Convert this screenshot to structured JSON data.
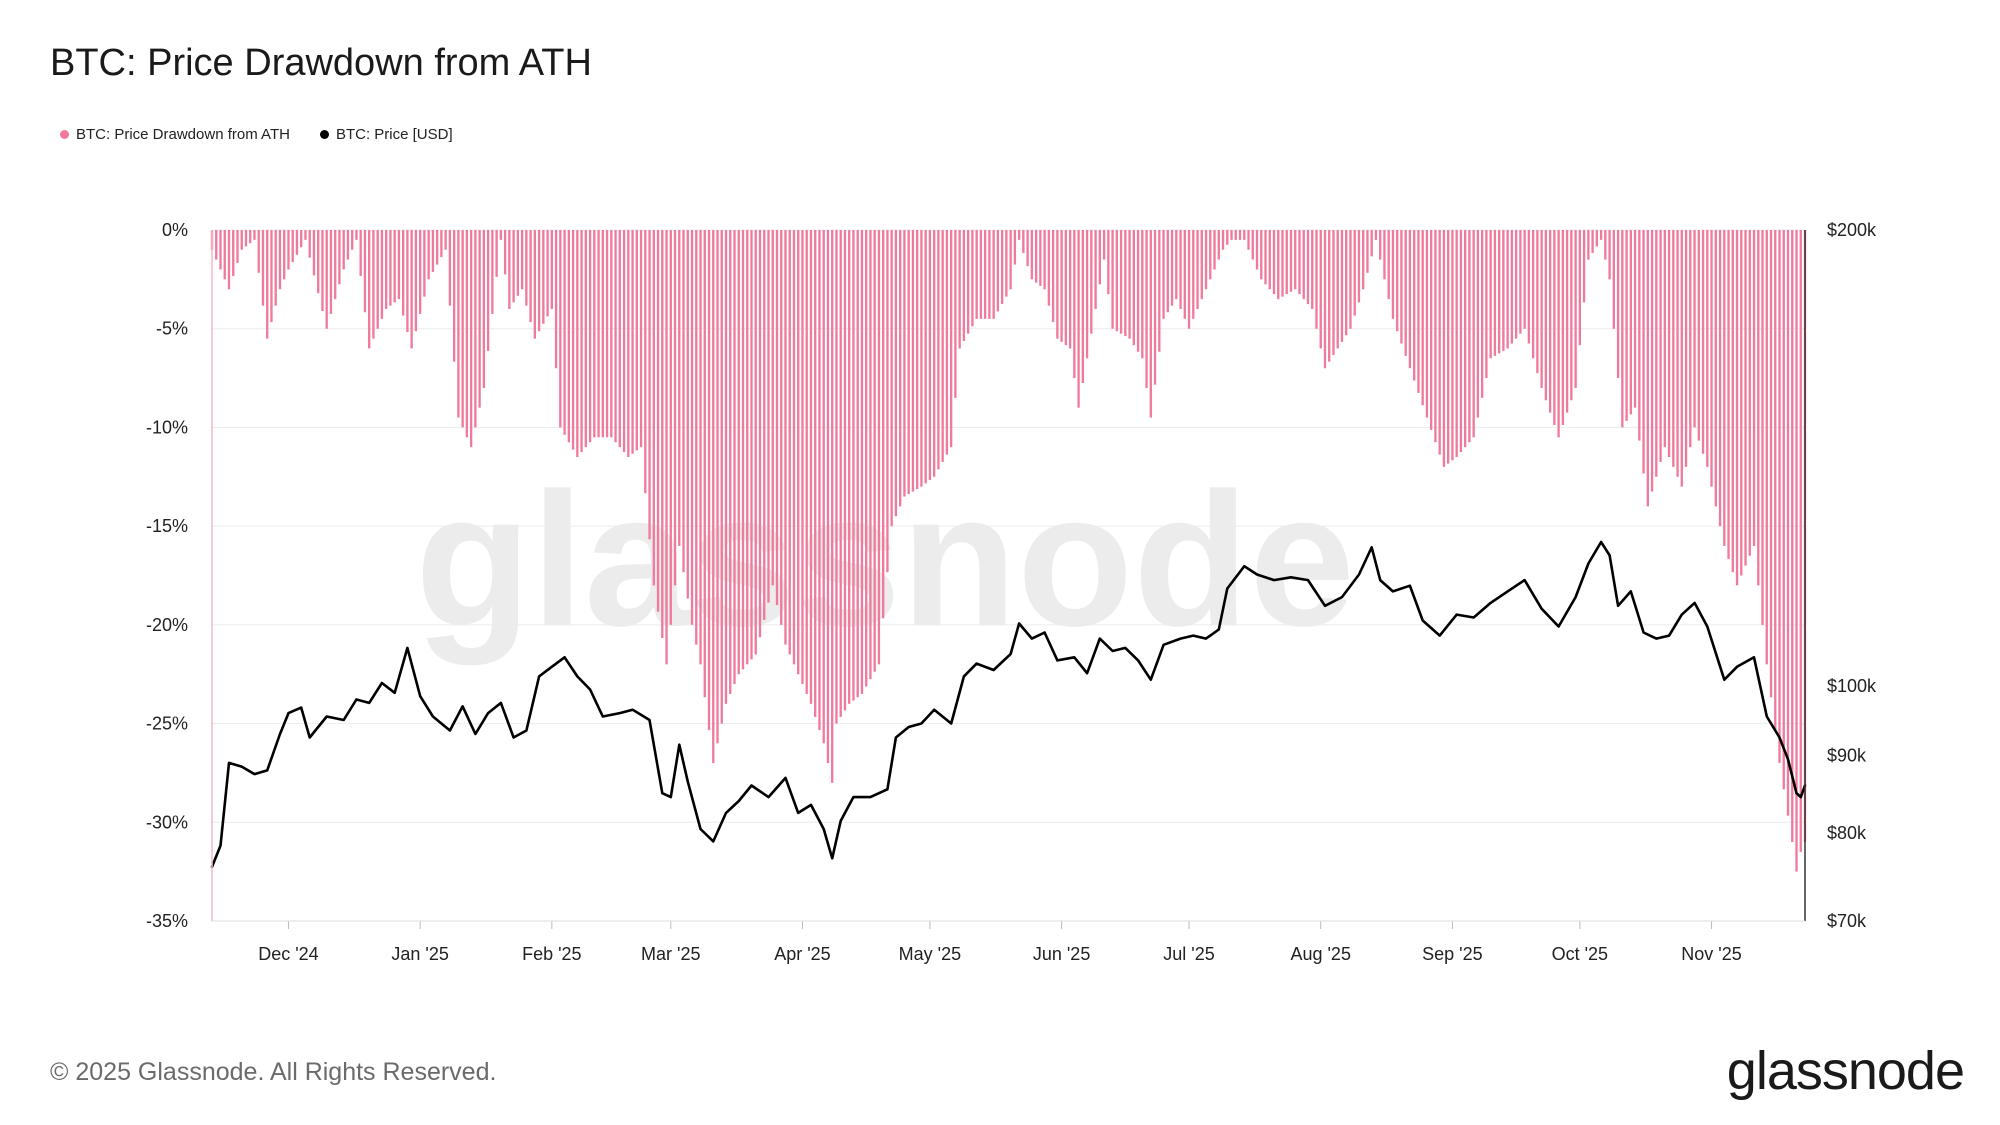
{
  "title": "BTC: Price Drawdown from ATH",
  "legend": [
    {
      "label": "BTC: Price Drawdown from ATH",
      "color": "#f07a9b"
    },
    {
      "label": "BTC: Price [USD]",
      "color": "#000000"
    }
  ],
  "footer": {
    "copyright": "© 2025 Glassnode. All Rights Reserved.",
    "logo": "glassnode"
  },
  "watermark": "glassnode",
  "chart_data": {
    "type": "bar+line",
    "x_range": [
      "2024-11-13",
      "2025-11-23"
    ],
    "x_ticks": [
      {
        "label": "Dec '24",
        "date": "2024-12-01"
      },
      {
        "label": "Jan '25",
        "date": "2025-01-01"
      },
      {
        "label": "Feb '25",
        "date": "2025-02-01"
      },
      {
        "label": "Mar '25",
        "date": "2025-03-01"
      },
      {
        "label": "Apr '25",
        "date": "2025-04-01"
      },
      {
        "label": "May '25",
        "date": "2025-05-01"
      },
      {
        "label": "Jun '25",
        "date": "2025-06-01"
      },
      {
        "label": "Jul '25",
        "date": "2025-07-01"
      },
      {
        "label": "Aug '25",
        "date": "2025-08-01"
      },
      {
        "label": "Sep '25",
        "date": "2025-09-01"
      },
      {
        "label": "Oct '25",
        "date": "2025-10-01"
      },
      {
        "label": "Nov '25",
        "date": "2025-11-01"
      }
    ],
    "left_axis": {
      "range": [
        -35,
        0
      ],
      "ticks": [
        {
          "value": 0,
          "label": "0%"
        },
        {
          "value": -5,
          "label": "-5%"
        },
        {
          "value": -10,
          "label": "-10%"
        },
        {
          "value": -15,
          "label": "-15%"
        },
        {
          "value": -20,
          "label": "-20%"
        },
        {
          "value": -25,
          "label": "-25%"
        },
        {
          "value": -30,
          "label": "-30%"
        },
        {
          "value": -35,
          "label": "-35%"
        }
      ]
    },
    "right_axis": {
      "scale": "log",
      "range": [
        70000,
        200000
      ],
      "ticks": [
        {
          "value": 200000,
          "label": "$200k"
        },
        {
          "value": 100000,
          "label": "$100k"
        },
        {
          "value": 90000,
          "label": "$90k"
        },
        {
          "value": 80000,
          "label": "$80k"
        },
        {
          "value": 70000,
          "label": "$70k"
        }
      ]
    },
    "grid": true,
    "legend_position": "top-left",
    "series": [
      {
        "name": "BTC: Price Drawdown from ATH",
        "type": "bar",
        "axis": "left",
        "color": "#f07a9b",
        "points": [
          [
            "2024-11-13",
            -1
          ],
          [
            "2024-11-17",
            -3
          ],
          [
            "2024-11-20",
            -1
          ],
          [
            "2024-11-23",
            -0.5
          ],
          [
            "2024-11-26",
            -5.5
          ],
          [
            "2024-11-29",
            -3
          ],
          [
            "2024-12-01",
            -2
          ],
          [
            "2024-12-05",
            -0.5
          ],
          [
            "2024-12-10",
            -5
          ],
          [
            "2024-12-14",
            -2
          ],
          [
            "2024-12-17",
            -0.5
          ],
          [
            "2024-12-20",
            -6
          ],
          [
            "2024-12-24",
            -4
          ],
          [
            "2024-12-27",
            -3.5
          ],
          [
            "2024-12-30",
            -6
          ],
          [
            "2025-01-03",
            -2.5
          ],
          [
            "2025-01-07",
            -1
          ],
          [
            "2025-01-10",
            -9.5
          ],
          [
            "2025-01-13",
            -11
          ],
          [
            "2025-01-16",
            -8
          ],
          [
            "2025-01-20",
            -0.5
          ],
          [
            "2025-01-22",
            -4
          ],
          [
            "2025-01-25",
            -3
          ],
          [
            "2025-01-28",
            -5.5
          ],
          [
            "2025-02-01",
            -4
          ],
          [
            "2025-02-03",
            -10
          ],
          [
            "2025-02-07",
            -11.5
          ],
          [
            "2025-02-11",
            -10.5
          ],
          [
            "2025-02-15",
            -10.5
          ],
          [
            "2025-02-19",
            -11.5
          ],
          [
            "2025-02-22",
            -11
          ],
          [
            "2025-02-25",
            -18
          ],
          [
            "2025-02-28",
            -22
          ],
          [
            "2025-03-03",
            -16
          ],
          [
            "2025-03-06",
            -20
          ],
          [
            "2025-03-08",
            -22
          ],
          [
            "2025-03-11",
            -27
          ],
          [
            "2025-03-14",
            -24
          ],
          [
            "2025-03-17",
            -22.5
          ],
          [
            "2025-03-21",
            -21.5
          ],
          [
            "2025-03-25",
            -18
          ],
          [
            "2025-03-28",
            -21
          ],
          [
            "2025-03-31",
            -22.5
          ],
          [
            "2025-04-03",
            -24
          ],
          [
            "2025-04-06",
            -26
          ],
          [
            "2025-04-08",
            -28
          ],
          [
            "2025-04-09",
            -25
          ],
          [
            "2025-04-12",
            -24
          ],
          [
            "2025-04-15",
            -23.5
          ],
          [
            "2025-04-19",
            -22
          ],
          [
            "2025-04-22",
            -15
          ],
          [
            "2025-04-25",
            -13.5
          ],
          [
            "2025-04-29",
            -13
          ],
          [
            "2025-05-02",
            -12.5
          ],
          [
            "2025-05-06",
            -11
          ],
          [
            "2025-05-08",
            -6
          ],
          [
            "2025-05-12",
            -4.5
          ],
          [
            "2025-05-16",
            -4.5
          ],
          [
            "2025-05-20",
            -3
          ],
          [
            "2025-05-22",
            -0.5
          ],
          [
            "2025-05-25",
            -2.5
          ],
          [
            "2025-05-28",
            -3
          ],
          [
            "2025-05-31",
            -5.5
          ],
          [
            "2025-06-03",
            -6
          ],
          [
            "2025-06-05",
            -9
          ],
          [
            "2025-06-09",
            -4
          ],
          [
            "2025-06-11",
            -1.5
          ],
          [
            "2025-06-13",
            -5
          ],
          [
            "2025-06-17",
            -5.5
          ],
          [
            "2025-06-20",
            -6.5
          ],
          [
            "2025-06-22",
            -9.5
          ],
          [
            "2025-06-25",
            -4.5
          ],
          [
            "2025-06-28",
            -3.5
          ],
          [
            "2025-07-01",
            -5
          ],
          [
            "2025-07-05",
            -3
          ],
          [
            "2025-07-09",
            -1
          ],
          [
            "2025-07-11",
            -0.5
          ],
          [
            "2025-07-14",
            -0.5
          ],
          [
            "2025-07-18",
            -2.5
          ],
          [
            "2025-07-22",
            -3.5
          ],
          [
            "2025-07-26",
            -3
          ],
          [
            "2025-07-30",
            -4
          ],
          [
            "2025-08-02",
            -7
          ],
          [
            "2025-08-05",
            -6
          ],
          [
            "2025-08-08",
            -5
          ],
          [
            "2025-08-11",
            -3
          ],
          [
            "2025-08-14",
            -0.5
          ],
          [
            "2025-08-18",
            -4.5
          ],
          [
            "2025-08-22",
            -7
          ],
          [
            "2025-08-26",
            -9.5
          ],
          [
            "2025-08-30",
            -12
          ],
          [
            "2025-09-02",
            -11.5
          ],
          [
            "2025-09-06",
            -10.5
          ],
          [
            "2025-09-10",
            -6.5
          ],
          [
            "2025-09-14",
            -6
          ],
          [
            "2025-09-18",
            -5
          ],
          [
            "2025-09-22",
            -8
          ],
          [
            "2025-09-26",
            -10.5
          ],
          [
            "2025-09-30",
            -8
          ],
          [
            "2025-10-03",
            -1.5
          ],
          [
            "2025-10-06",
            -0.5
          ],
          [
            "2025-10-08",
            -2.5
          ],
          [
            "2025-10-11",
            -10
          ],
          [
            "2025-10-14",
            -9
          ],
          [
            "2025-10-17",
            -14
          ],
          [
            "2025-10-21",
            -11
          ],
          [
            "2025-10-25",
            -13
          ],
          [
            "2025-10-28",
            -10
          ],
          [
            "2025-10-31",
            -12
          ],
          [
            "2025-11-04",
            -16
          ],
          [
            "2025-11-07",
            -18
          ],
          [
            "2025-11-11",
            -16
          ],
          [
            "2025-11-14",
            -22
          ],
          [
            "2025-11-17",
            -27
          ],
          [
            "2025-11-20",
            -31
          ],
          [
            "2025-11-21",
            -32.5
          ],
          [
            "2025-11-22",
            -31.5
          ],
          [
            "2025-11-23",
            -31
          ]
        ]
      },
      {
        "name": "BTC: Price [USD]",
        "type": "line",
        "axis": "right",
        "color": "#000000",
        "points": [
          [
            "2024-11-13",
            76000
          ],
          [
            "2024-11-15",
            78500
          ],
          [
            "2024-11-17",
            89000
          ],
          [
            "2024-11-20",
            88500
          ],
          [
            "2024-11-23",
            87500
          ],
          [
            "2024-11-26",
            88000
          ],
          [
            "2024-11-29",
            93000
          ],
          [
            "2024-12-01",
            96000
          ],
          [
            "2024-12-04",
            96800
          ],
          [
            "2024-12-06",
            92500
          ],
          [
            "2024-12-10",
            95500
          ],
          [
            "2024-12-14",
            95000
          ],
          [
            "2024-12-17",
            98000
          ],
          [
            "2024-12-20",
            97500
          ],
          [
            "2024-12-23",
            100500
          ],
          [
            "2024-12-26",
            99000
          ],
          [
            "2024-12-29",
            106000
          ],
          [
            "2025-01-01",
            98500
          ],
          [
            "2025-01-04",
            95500
          ],
          [
            "2025-01-08",
            93500
          ],
          [
            "2025-01-11",
            97000
          ],
          [
            "2025-01-14",
            93000
          ],
          [
            "2025-01-17",
            96000
          ],
          [
            "2025-01-20",
            97500
          ],
          [
            "2025-01-23",
            92500
          ],
          [
            "2025-01-26",
            93500
          ],
          [
            "2025-01-29",
            101500
          ],
          [
            "2025-02-01",
            103000
          ],
          [
            "2025-02-04",
            104500
          ],
          [
            "2025-02-07",
            101500
          ],
          [
            "2025-02-10",
            99500
          ],
          [
            "2025-02-13",
            95500
          ],
          [
            "2025-02-17",
            96000
          ],
          [
            "2025-02-20",
            96500
          ],
          [
            "2025-02-24",
            95000
          ],
          [
            "2025-02-27",
            85000
          ],
          [
            "2025-03-01",
            84500
          ],
          [
            "2025-03-03",
            91500
          ],
          [
            "2025-03-05",
            86500
          ],
          [
            "2025-03-08",
            80500
          ],
          [
            "2025-03-11",
            79000
          ],
          [
            "2025-03-14",
            82500
          ],
          [
            "2025-03-17",
            84000
          ],
          [
            "2025-03-20",
            86000
          ],
          [
            "2025-03-24",
            84500
          ],
          [
            "2025-03-28",
            87000
          ],
          [
            "2025-03-31",
            82500
          ],
          [
            "2025-04-03",
            83500
          ],
          [
            "2025-04-06",
            80500
          ],
          [
            "2025-04-08",
            77000
          ],
          [
            "2025-04-10",
            81500
          ],
          [
            "2025-04-13",
            84500
          ],
          [
            "2025-04-17",
            84500
          ],
          [
            "2025-04-21",
            85500
          ],
          [
            "2025-04-23",
            92500
          ],
          [
            "2025-04-26",
            94000
          ],
          [
            "2025-04-29",
            94500
          ],
          [
            "2025-05-02",
            96500
          ],
          [
            "2025-05-06",
            94500
          ],
          [
            "2025-05-09",
            101500
          ],
          [
            "2025-05-12",
            103500
          ],
          [
            "2025-05-16",
            102500
          ],
          [
            "2025-05-20",
            105000
          ],
          [
            "2025-05-22",
            110000
          ],
          [
            "2025-05-25",
            107500
          ],
          [
            "2025-05-28",
            108500
          ],
          [
            "2025-05-31",
            104000
          ],
          [
            "2025-06-04",
            104500
          ],
          [
            "2025-06-07",
            102000
          ],
          [
            "2025-06-10",
            107500
          ],
          [
            "2025-06-13",
            105500
          ],
          [
            "2025-06-16",
            106000
          ],
          [
            "2025-06-19",
            104000
          ],
          [
            "2025-06-22",
            101000
          ],
          [
            "2025-06-25",
            106500
          ],
          [
            "2025-06-29",
            107500
          ],
          [
            "2025-07-02",
            108000
          ],
          [
            "2025-07-05",
            107500
          ],
          [
            "2025-07-08",
            109000
          ],
          [
            "2025-07-10",
            116000
          ],
          [
            "2025-07-14",
            120000
          ],
          [
            "2025-07-17",
            118500
          ],
          [
            "2025-07-21",
            117500
          ],
          [
            "2025-07-25",
            118000
          ],
          [
            "2025-07-29",
            117500
          ],
          [
            "2025-08-02",
            113000
          ],
          [
            "2025-08-06",
            114500
          ],
          [
            "2025-08-10",
            118500
          ],
          [
            "2025-08-13",
            123500
          ],
          [
            "2025-08-15",
            117500
          ],
          [
            "2025-08-18",
            115500
          ],
          [
            "2025-08-22",
            116500
          ],
          [
            "2025-08-25",
            110500
          ],
          [
            "2025-08-29",
            108000
          ],
          [
            "2025-09-02",
            111500
          ],
          [
            "2025-09-06",
            111000
          ],
          [
            "2025-09-10",
            113500
          ],
          [
            "2025-09-14",
            115500
          ],
          [
            "2025-09-18",
            117500
          ],
          [
            "2025-09-22",
            112500
          ],
          [
            "2025-09-26",
            109500
          ],
          [
            "2025-09-30",
            114500
          ],
          [
            "2025-10-03",
            120500
          ],
          [
            "2025-10-06",
            124500
          ],
          [
            "2025-10-08",
            122000
          ],
          [
            "2025-10-10",
            113000
          ],
          [
            "2025-10-13",
            115500
          ],
          [
            "2025-10-16",
            108500
          ],
          [
            "2025-10-19",
            107500
          ],
          [
            "2025-10-22",
            108000
          ],
          [
            "2025-10-25",
            111500
          ],
          [
            "2025-10-28",
            113500
          ],
          [
            "2025-10-31",
            109500
          ],
          [
            "2025-11-04",
            101000
          ],
          [
            "2025-11-07",
            103000
          ],
          [
            "2025-11-11",
            104500
          ],
          [
            "2025-11-14",
            95500
          ],
          [
            "2025-11-17",
            92500
          ],
          [
            "2025-11-19",
            89500
          ],
          [
            "2025-11-21",
            85000
          ],
          [
            "2025-11-22",
            84500
          ],
          [
            "2025-11-23",
            86000
          ]
        ]
      }
    ]
  }
}
